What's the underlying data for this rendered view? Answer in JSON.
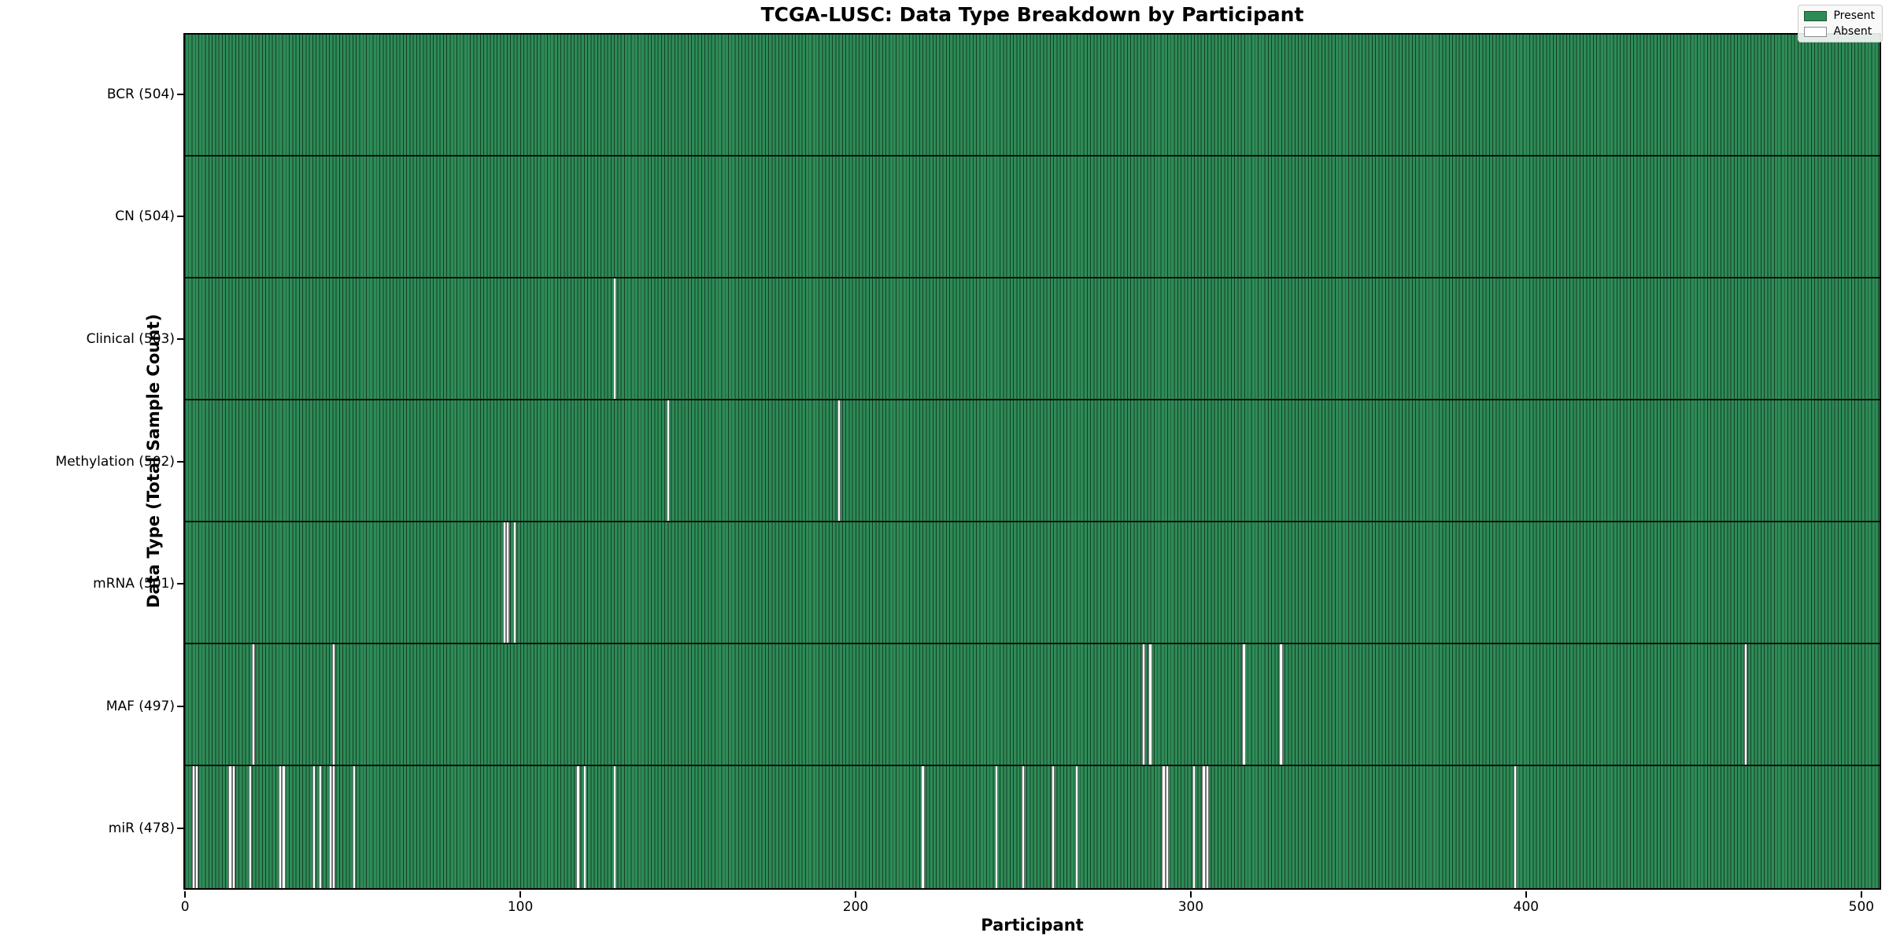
{
  "figure": {
    "title": "TCGA-LUSC: Data Type Breakdown by Participant",
    "x_axis_label": "Participant",
    "y_axis_label": "Data Type (Total Sample Count)"
  },
  "legend": {
    "items": [
      {
        "label": "Present",
        "color": "#2e8b57"
      },
      {
        "label": "Absent",
        "color": "#ffffff"
      }
    ],
    "position": "upper right"
  },
  "colors": {
    "present_fill": "#2e8b57",
    "absent_fill": "#ffffff",
    "bar_edge": "#1a3d29",
    "row_separator": "#000000",
    "plot_border": "#000000",
    "background": "#ffffff"
  },
  "chart_data": {
    "type": "heatmap",
    "title": "TCGA-LUSC: Data Type Breakdown by Participant",
    "xlabel": "Participant",
    "ylabel": "Data Type (Total Sample Count)",
    "x_ticks": [
      0,
      100,
      200,
      300,
      400,
      500
    ],
    "xlim": [
      -0.5,
      505.9
    ],
    "total_participants": 504,
    "grid": false,
    "legend_entries": [
      "Present",
      "Absent"
    ],
    "rows": [
      {
        "label": "BCR (504)",
        "data_type": "BCR",
        "total_sample_count": 504,
        "absent_participants": []
      },
      {
        "label": "CN (504)",
        "data_type": "CN",
        "total_sample_count": 504,
        "absent_participants": []
      },
      {
        "label": "Clinical (503)",
        "data_type": "Clinical",
        "total_sample_count": 503,
        "absent_participants": [
          128
        ]
      },
      {
        "label": "Methylation (502)",
        "data_type": "Methylation",
        "total_sample_count": 502,
        "absent_participants": [
          144,
          195
        ]
      },
      {
        "label": "mRNA (501)",
        "data_type": "mRNA",
        "total_sample_count": 501,
        "absent_participants": [
          95,
          96,
          98
        ]
      },
      {
        "label": "MAF (497)",
        "data_type": "MAF",
        "total_sample_count": 497,
        "absent_participants": [
          20,
          44,
          286,
          288,
          316,
          327,
          466
        ]
      },
      {
        "label": "miR (478)",
        "data_type": "miR",
        "total_sample_count": 478,
        "absent_participants": [
          2,
          3,
          13,
          14,
          19,
          28,
          29,
          38,
          40,
          43,
          44,
          50,
          117,
          119,
          128,
          220,
          242,
          250,
          259,
          266,
          292,
          293,
          301,
          304,
          305,
          397
        ]
      }
    ]
  }
}
